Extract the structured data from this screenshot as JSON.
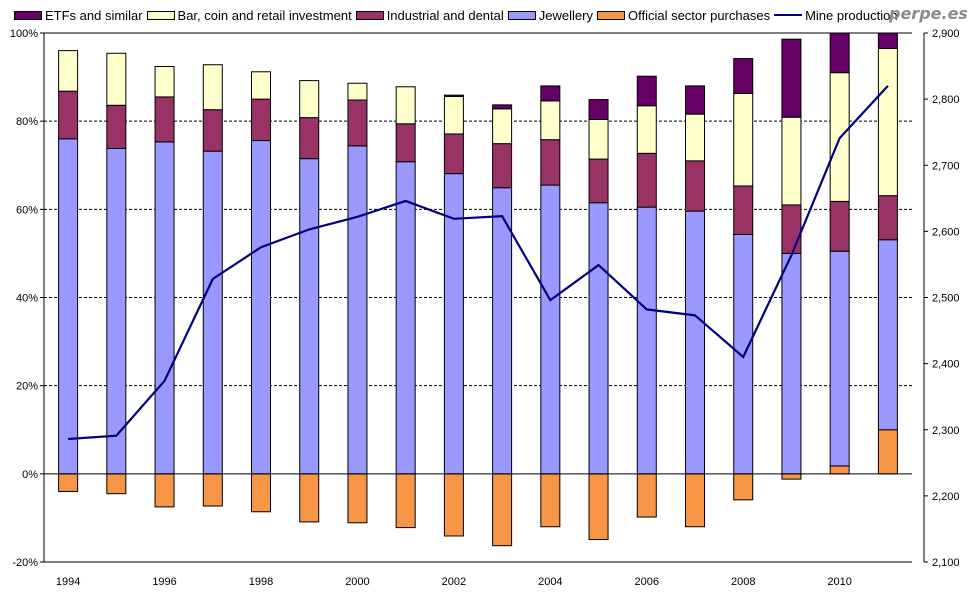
{
  "brand": "perpe.es",
  "chart_data": {
    "type": "bar",
    "stacked": true,
    "title": "",
    "xlabel": "",
    "ylabel": "",
    "y2label": "",
    "categories": [
      "1994",
      "1995",
      "1996",
      "1997",
      "1998",
      "1999",
      "2000",
      "2001",
      "2002",
      "2003",
      "2004",
      "2005",
      "2006",
      "2007",
      "2008",
      "2009",
      "2010",
      "2011"
    ],
    "x_tick_labels": [
      "1994",
      "1996",
      "1998",
      "2000",
      "2002",
      "2004",
      "2006",
      "2008",
      "2010"
    ],
    "ylim": [
      -20,
      100
    ],
    "y_ticks": [
      -20,
      0,
      20,
      40,
      60,
      80,
      100
    ],
    "y_tick_labels": [
      "-20%",
      "0%",
      "20%",
      "40%",
      "60%",
      "80%",
      "100%"
    ],
    "y2lim": [
      2100,
      2900
    ],
    "y2_ticks": [
      2100,
      2200,
      2300,
      2400,
      2500,
      2600,
      2700,
      2800,
      2900
    ],
    "y2_tick_labels": [
      "2,100",
      "2,200",
      "2,300",
      "2,400",
      "2,500",
      "2,600",
      "2,700",
      "2,800",
      "2,900"
    ],
    "grid": "horizontal-dashed",
    "legend_position": "top",
    "series": [
      {
        "name": "ETFs and similar",
        "color": "#660066",
        "axis": "left",
        "kind": "bar",
        "values": [
          0,
          0,
          0,
          0,
          0,
          0,
          0,
          0,
          0.3,
          0.9,
          3.4,
          4.5,
          6.7,
          6.4,
          7.9,
          17.7,
          9,
          3.5
        ]
      },
      {
        "name": "Bar, coin and retail investment",
        "color": "#FFFFCC",
        "axis": "left",
        "kind": "bar",
        "values": [
          9.2,
          11.8,
          6.9,
          10.2,
          6.2,
          8.4,
          3.8,
          8.4,
          8.5,
          7.9,
          8.8,
          9,
          10.8,
          10.6,
          21,
          19.9,
          29.2,
          33.4
        ]
      },
      {
        "name": "Industrial and dental",
        "color": "#993366",
        "axis": "left",
        "kind": "bar",
        "values": [
          10.8,
          9.8,
          10.2,
          9.4,
          9.4,
          9.3,
          10.4,
          8.6,
          9,
          10,
          10.3,
          9.9,
          12.2,
          11.4,
          11,
          11,
          11.3,
          10
        ]
      },
      {
        "name": "Jewellery",
        "color": "#9999FF",
        "axis": "left",
        "kind": "bar",
        "values": [
          76,
          73.8,
          75.3,
          73.2,
          75.6,
          71.5,
          74.4,
          70.8,
          68.1,
          64.9,
          65.5,
          61.5,
          60.5,
          59.6,
          54.3,
          50,
          48.7,
          43.1
        ]
      },
      {
        "name": "Official sector purchases",
        "color": "#F79646",
        "axis": "left",
        "kind": "bar",
        "values": [
          -4,
          -4.5,
          -7.5,
          -7.3,
          -8.6,
          -10.9,
          -11.1,
          -12.2,
          -14.1,
          -16.3,
          -12,
          -14.9,
          -9.8,
          -12,
          -5.9,
          -1.2,
          1.8,
          10
        ]
      },
      {
        "name": "Mine production",
        "color": "#000080",
        "axis": "right",
        "kind": "line",
        "values": [
          2286,
          2291,
          2374,
          2528,
          2576,
          2603,
          2622,
          2646,
          2619,
          2623,
          2496,
          2549,
          2482,
          2473,
          2410,
          2564,
          2741,
          2820
        ]
      }
    ]
  }
}
